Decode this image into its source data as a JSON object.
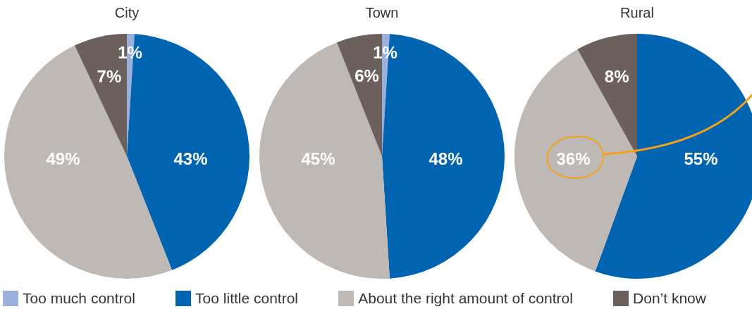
{
  "chart_data": {
    "type": "pie",
    "categories": [
      "Too much control",
      "Too little control",
      "About the right amount of control",
      "Don’t know"
    ],
    "colors": [
      "#9aafdb",
      "#0064b1",
      "#bfb9b6",
      "#6b605c"
    ],
    "legend": "bottom",
    "series": [
      {
        "name": "City",
        "values": [
          1,
          43,
          49,
          7
        ],
        "value_labels": [
          "1%",
          "43%",
          "49%",
          "7%"
        ]
      },
      {
        "name": "Town",
        "values": [
          1,
          48,
          45,
          6
        ],
        "value_labels": [
          "1%",
          "48%",
          "45%",
          "6%"
        ]
      },
      {
        "name": "Rural",
        "values": [
          null,
          55,
          36,
          8
        ],
        "value_labels": [
          null,
          "55%",
          "36%",
          "8%"
        ]
      }
    ]
  }
}
